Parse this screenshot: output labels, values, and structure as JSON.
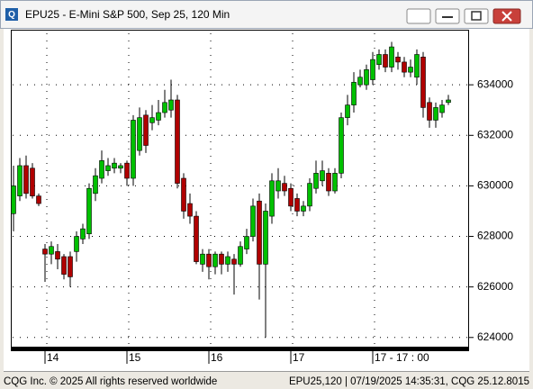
{
  "chart_data": {
    "type": "candlestick",
    "title": "EPU25 - E-Mini S&P 500, Sep 25, 120 Min",
    "up_color": "#00c000",
    "down_color": "#b00000",
    "open": [
      628900,
      629600,
      630800,
      630700,
      629600,
      627500,
      627300,
      627400,
      627200,
      627200,
      627400,
      627900,
      628100,
      629700,
      630300,
      630600,
      630700,
      630700,
      630900,
      630300,
      631400,
      632800,
      632500,
      632600,
      632900,
      633000,
      633400,
      630300,
      629300,
      628800,
      626900,
      627300,
      626800,
      627300,
      626900,
      627100,
      626900,
      627500,
      628000,
      629400,
      626900,
      628800,
      629800,
      630100,
      629900,
      629500,
      629000,
      629200,
      629900,
      630200,
      630500,
      629800,
      630500,
      632700,
      633200,
      634000,
      634000,
      634200,
      634800,
      635200,
      634700,
      635100,
      634900,
      634500,
      634300,
      635100,
      633300,
      632600,
      632900,
      633300
    ],
    "high": [
      630800,
      631100,
      631200,
      630900,
      629700,
      627700,
      627800,
      627700,
      627300,
      627400,
      628200,
      628500,
      630100,
      630700,
      631400,
      631100,
      631100,
      630900,
      631000,
      632800,
      633100,
      633000,
      633200,
      633400,
      633800,
      634200,
      633600,
      630500,
      629700,
      629000,
      627500,
      627500,
      627400,
      627400,
      627400,
      627300,
      627800,
      628300,
      629500,
      629700,
      629300,
      630500,
      630700,
      630400,
      630100,
      629700,
      629400,
      630300,
      631000,
      631000,
      630700,
      630700,
      632900,
      633600,
      634500,
      634600,
      634800,
      635300,
      635400,
      635400,
      635700,
      635300,
      635100,
      635000,
      635400,
      635300,
      633500,
      633300,
      633400,
      633600
    ],
    "low": [
      628200,
      629400,
      629500,
      629500,
      629200,
      626200,
      626900,
      626700,
      626300,
      626000,
      627000,
      627700,
      627900,
      629400,
      630100,
      630400,
      630500,
      630500,
      630000,
      630000,
      631200,
      631300,
      632200,
      632400,
      632700,
      632700,
      629900,
      628700,
      628500,
      626900,
      626600,
      626300,
      626500,
      626500,
      626600,
      625700,
      626800,
      627300,
      627800,
      625500,
      624000,
      628500,
      629500,
      629600,
      629000,
      628800,
      628800,
      629000,
      629700,
      630000,
      629600,
      629700,
      630300,
      632400,
      632900,
      633900,
      633800,
      634000,
      634600,
      634500,
      634500,
      634600,
      634300,
      634300,
      634000,
      632700,
      632300,
      632300,
      632700,
      633200
    ],
    "close": [
      630000,
      630800,
      629700,
      629600,
      629300,
      627300,
      627600,
      627100,
      626500,
      626400,
      628000,
      628300,
      629900,
      630400,
      631000,
      630800,
      630900,
      630800,
      630300,
      632600,
      632700,
      631600,
      632700,
      632900,
      633300,
      633400,
      630100,
      629000,
      628800,
      627000,
      627300,
      626800,
      627300,
      626900,
      627200,
      626900,
      627600,
      628000,
      629200,
      626900,
      629000,
      630200,
      630200,
      629800,
      629200,
      629000,
      629200,
      630100,
      630500,
      630600,
      629800,
      630500,
      632700,
      633200,
      634100,
      634300,
      634600,
      635000,
      635200,
      634700,
      635500,
      634900,
      634500,
      634700,
      635200,
      633100,
      632600,
      633100,
      633200,
      633400
    ],
    "ylim": [
      623600,
      636180
    ],
    "yticks": [
      624000,
      626000,
      628000,
      630000,
      632000,
      634000
    ],
    "xticks": [
      {
        "value": 5,
        "label": "14"
      },
      {
        "value": 18,
        "label": "15"
      },
      {
        "value": 31,
        "label": "16"
      },
      {
        "value": 44,
        "label": "17"
      },
      {
        "value": 57,
        "label": "17 - 17 : 00"
      }
    ],
    "grid": true
  },
  "footer": {
    "left": "CQG Inc. © 2025 All rights reserved worldwide",
    "right": "EPU25,120 | 07/19/2025 14:35:31, CQG 25.12.8015"
  }
}
